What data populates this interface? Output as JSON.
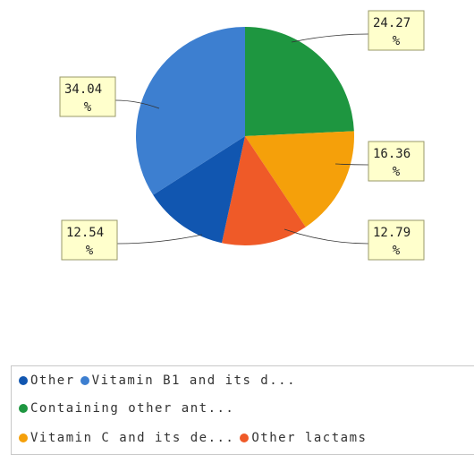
{
  "chart_data": {
    "type": "pie",
    "slices": [
      {
        "name": "Other",
        "value": 12.54,
        "label_top": "12.54",
        "label_bottom": "%",
        "color": "#1156b0"
      },
      {
        "name": "Vitamin B1 and its d...",
        "value": 34.04,
        "label_top": "34.04",
        "label_bottom": "%",
        "color": "#3d7fd0"
      },
      {
        "name": "Containing other ant...",
        "value": 24.27,
        "label_top": "24.27",
        "label_bottom": "%",
        "color": "#1e9640"
      },
      {
        "name": "Vitamin C and its de...",
        "value": 16.36,
        "label_top": "16.36",
        "label_bottom": "%",
        "color": "#f5a00a"
      },
      {
        "name": "Other lactams",
        "value": 12.79,
        "label_top": "12.79",
        "label_bottom": "%",
        "color": "#ef5a28"
      }
    ],
    "legend": {
      "rows": [
        [
          0,
          1
        ],
        [
          2
        ],
        [
          3,
          4
        ]
      ],
      "placement": "bottom"
    }
  }
}
